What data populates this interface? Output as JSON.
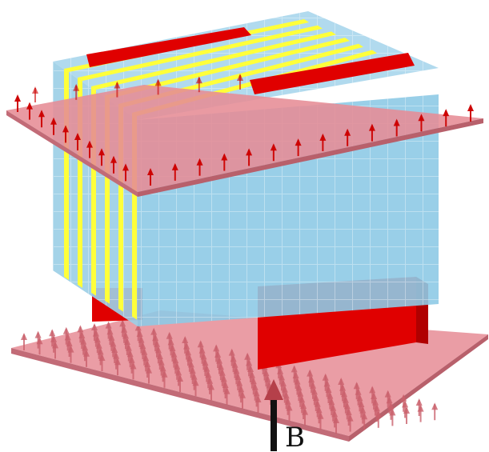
{
  "field": {
    "label": "B"
  },
  "colors": {
    "background": "#ffffff",
    "block": "#8ecae6",
    "block_edge": "#6fb0d0",
    "stripe": "#ffff3a",
    "bar": "#e00000",
    "bar_dark": "#b00000",
    "plate": "#e68c95",
    "field_arrow": "#cc0000",
    "field_arrow_faded": "#c9606c",
    "b_arrow_shaft": "#111111",
    "b_arrow_head": "#b5404a"
  }
}
